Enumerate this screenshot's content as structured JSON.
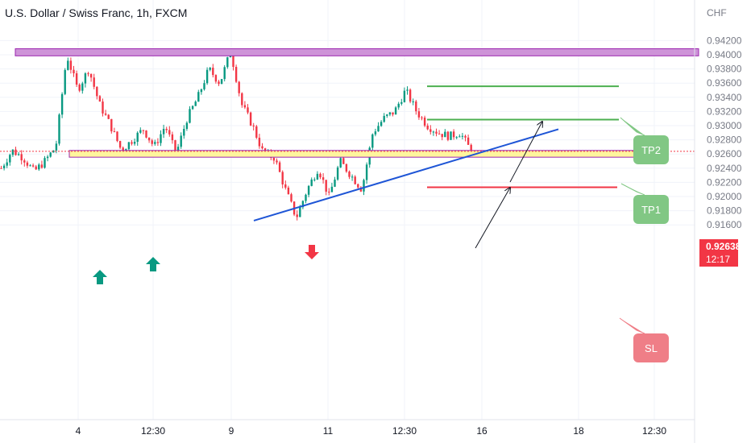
{
  "header": {
    "symbol_title": "U.S. Dollar / Swiss Franc, 1h, FXCM"
  },
  "price_badge": {
    "price": "0.92638",
    "countdown": "12:17"
  },
  "colors": {
    "up": "#089981",
    "down": "#f23645",
    "resistance": "#ce93d8",
    "support": "#fff59d",
    "trendline": "#1e55d6",
    "tp": "#4caf50",
    "sl": "#f23645",
    "tp_callout": "#81c784",
    "sl_callout": "#ef7e87"
  },
  "chart_data": {
    "type": "candlestick",
    "title": "U.S. Dollar / Swiss Franc, 1h, FXCM",
    "y_unit": "CHF",
    "ylim": [
      0.915,
      0.9425
    ],
    "y_ticks": [
      "0.94200",
      "0.94000",
      "0.93800",
      "0.93600",
      "0.93400",
      "0.93200",
      "0.93000",
      "0.92800",
      "0.92600",
      "0.92400",
      "0.92200",
      "0.92000",
      "0.91800",
      "0.91600"
    ],
    "x_ticks": [
      "4",
      "12:30",
      "9",
      "11",
      "12:30",
      "16",
      "18",
      "12:30"
    ],
    "grid": true,
    "price_path": [
      0.924,
      0.9265,
      0.9255,
      0.9235,
      0.925,
      0.927,
      0.94,
      0.935,
      0.938,
      0.933,
      0.93,
      0.9265,
      0.928,
      0.9295,
      0.927,
      0.93,
      0.926,
      0.931,
      0.934,
      0.938,
      0.936,
      0.9405,
      0.933,
      0.93,
      0.926,
      0.9255,
      0.921,
      0.917,
      0.921,
      0.924,
      0.92,
      0.925,
      0.923,
      0.921,
      0.929,
      0.931,
      0.932,
      0.935,
      0.932,
      0.93,
      0.929,
      0.9285,
      0.929,
      0.9264
    ],
    "annotations": {
      "resistance_zone": [
        0.93985,
        0.94085
      ],
      "support_zone": [
        0.92555,
        0.9265
      ],
      "tp2": 0.93555,
      "tp1": 0.93085,
      "sl": 0.9213,
      "current_price": 0.92638,
      "callouts": [
        "TP2",
        "TP1",
        "SL"
      ]
    }
  }
}
